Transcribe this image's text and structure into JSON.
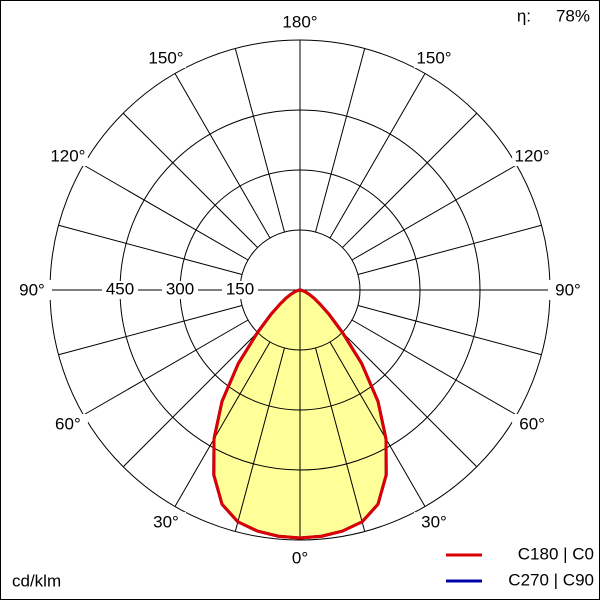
{
  "chart_data": {
    "type": "polar",
    "unit_label": "cd/klm",
    "efficiency_label": "η:",
    "efficiency_value": "78%",
    "theta": [
      0,
      5,
      10,
      15,
      20,
      25,
      30,
      35,
      40,
      45,
      50,
      55,
      60,
      65,
      70,
      75,
      80,
      85,
      90
    ],
    "series": [
      {
        "name": "C270 | C90",
        "color": "#0000aa",
        "values": [
          620,
          618,
          612,
          600,
          570,
          510,
          430,
          340,
          240,
          150,
          95,
          60,
          40,
          25,
          15,
          8,
          4,
          2,
          0
        ]
      },
      {
        "name": "C180 | C0",
        "color": "#dd0000",
        "values": [
          620,
          618,
          612,
          600,
          570,
          510,
          430,
          340,
          240,
          150,
          95,
          60,
          40,
          25,
          15,
          8,
          4,
          2,
          0
        ]
      }
    ],
    "fill": "#ffff99",
    "rlim": [
      0,
      625
    ],
    "rticks": [
      150,
      300,
      450
    ],
    "thetaticks": [
      {
        "value": 0,
        "label": "0°"
      },
      {
        "value": 30,
        "label": "30°"
      },
      {
        "value": 60,
        "label": "60°"
      },
      {
        "value": 90,
        "label": "90°"
      },
      {
        "value": 120,
        "label": "120°"
      },
      {
        "value": 150,
        "label": "150°"
      },
      {
        "value": 180,
        "label": "180°"
      }
    ],
    "spoke_step": 15,
    "grid": true
  }
}
